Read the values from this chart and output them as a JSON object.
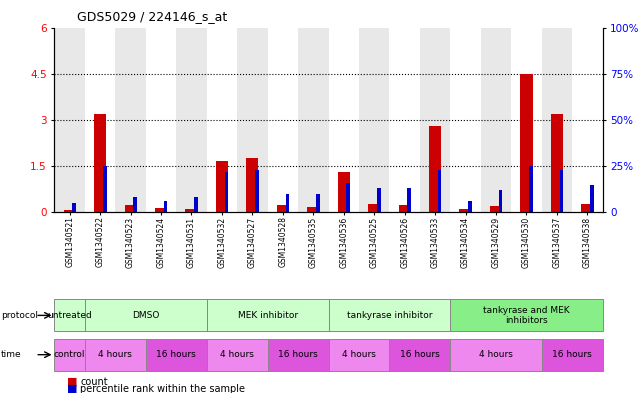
{
  "title": "GDS5029 / 224146_s_at",
  "samples": [
    "GSM1340521",
    "GSM1340522",
    "GSM1340523",
    "GSM1340524",
    "GSM1340531",
    "GSM1340532",
    "GSM1340527",
    "GSM1340528",
    "GSM1340535",
    "GSM1340536",
    "GSM1340525",
    "GSM1340526",
    "GSM1340533",
    "GSM1340534",
    "GSM1340529",
    "GSM1340530",
    "GSM1340537",
    "GSM1340538"
  ],
  "count_values": [
    0.08,
    3.2,
    0.25,
    0.15,
    0.12,
    1.65,
    1.75,
    0.22,
    0.18,
    1.3,
    0.28,
    0.25,
    2.8,
    0.12,
    0.2,
    4.5,
    3.2,
    0.28
  ],
  "percentile_values": [
    5,
    25,
    8,
    6,
    8,
    22,
    23,
    10,
    10,
    16,
    13,
    13,
    23,
    6,
    12,
    25,
    23,
    15
  ],
  "bar_color_red": "#cc0000",
  "bar_color_blue": "#0000cc",
  "ylim_left": [
    0,
    6
  ],
  "ylim_right": [
    0,
    100
  ],
  "yticks_left": [
    0,
    1.5,
    3.0,
    4.5,
    6.0
  ],
  "yticks_right": [
    0,
    25,
    50,
    75,
    100
  ],
  "grid_values": [
    1.5,
    3.0,
    4.5
  ],
  "protocol_groups": [
    {
      "label": "untreated",
      "start": 0,
      "end": 1,
      "color": "#ccffcc"
    },
    {
      "label": "DMSO",
      "start": 1,
      "end": 5,
      "color": "#ccffcc"
    },
    {
      "label": "MEK inhibitor",
      "start": 5,
      "end": 9,
      "color": "#ccffcc"
    },
    {
      "label": "tankyrase inhibitor",
      "start": 9,
      "end": 13,
      "color": "#ccffcc"
    },
    {
      "label": "tankyrase and MEK\ninhibitors",
      "start": 13,
      "end": 18,
      "color": "#88ee88"
    }
  ],
  "time_groups": [
    {
      "label": "control",
      "start": 0,
      "end": 1,
      "color": "#ee88ee"
    },
    {
      "label": "4 hours",
      "start": 1,
      "end": 3,
      "color": "#ee88ee"
    },
    {
      "label": "16 hours",
      "start": 3,
      "end": 5,
      "color": "#dd55dd"
    },
    {
      "label": "4 hours",
      "start": 5,
      "end": 7,
      "color": "#ee88ee"
    },
    {
      "label": "16 hours",
      "start": 7,
      "end": 9,
      "color": "#dd55dd"
    },
    {
      "label": "4 hours",
      "start": 9,
      "end": 11,
      "color": "#ee88ee"
    },
    {
      "label": "16 hours",
      "start": 11,
      "end": 13,
      "color": "#dd55dd"
    },
    {
      "label": "4 hours",
      "start": 13,
      "end": 16,
      "color": "#ee88ee"
    },
    {
      "label": "16 hours",
      "start": 16,
      "end": 18,
      "color": "#dd55dd"
    }
  ],
  "sample_bg_colors": [
    "#e8e8e8",
    "#ffffff",
    "#e8e8e8",
    "#ffffff",
    "#e8e8e8",
    "#ffffff",
    "#e8e8e8",
    "#ffffff",
    "#e8e8e8",
    "#ffffff",
    "#e8e8e8",
    "#ffffff",
    "#e8e8e8",
    "#ffffff",
    "#e8e8e8",
    "#ffffff",
    "#e8e8e8",
    "#ffffff"
  ]
}
